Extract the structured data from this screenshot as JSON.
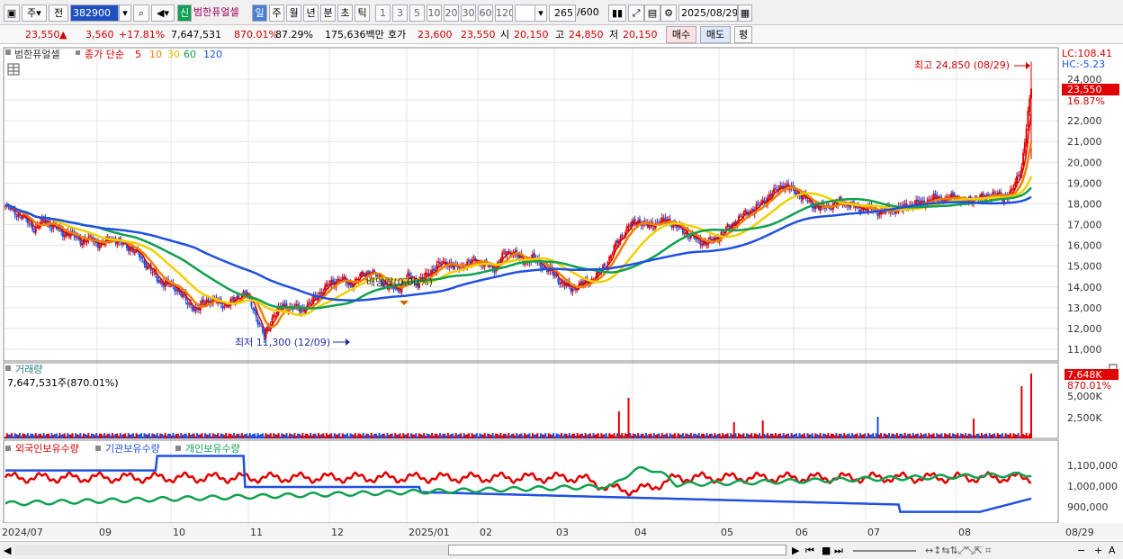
{
  "toolbar": {
    "period": "주",
    "mode": "전",
    "code": "382900",
    "new_badge": "신",
    "stock_name": "범한퓨얼셀",
    "tf": [
      "일",
      "주",
      "월",
      "년",
      "분",
      "초",
      "틱"
    ],
    "tf_active": "일",
    "mins": [
      "1",
      "3",
      "5",
      "10",
      "20",
      "30",
      "60",
      "120"
    ],
    "count": "265",
    "count_total": "/600",
    "date": "2025/08/29"
  },
  "quote": {
    "price": "23,550",
    "up_arrow": "▲",
    "change": "3,560",
    "pct": "+17.81%",
    "volume": "7,647,531",
    "vol_ratio": "870.01%",
    "turnover": "87.29%",
    "amount": "175,636백만",
    "ask_label": "호가",
    "ask": "23,600",
    "bid": "23,550",
    "open_label": "시",
    "open": "20,150",
    "high_label": "고",
    "high": "24,850",
    "low_label": "저",
    "low": "20,150",
    "buy": "매수",
    "sell": "매도",
    "avg": "평"
  },
  "chart": {
    "legend_name": "범한퓨얼셀",
    "legend_ma_label": "종가 단순",
    "ma_periods": [
      "5",
      "10",
      "30",
      "60",
      "120"
    ],
    "ma_colors": [
      "#e00000",
      "#f08000",
      "#f0d000",
      "#10a050",
      "#2050e0"
    ],
    "lc": "LC:108.41",
    "hc": "HC:-5.23",
    "price_tag": "23,550",
    "pct_tag": "16.87%",
    "high_note": "최고 24,850 (08/29)",
    "low_note": "최저 11,300 (12/09)",
    "dividend_note": "배당락(0.00%)",
    "y_labels": [
      "24,000",
      "23,000",
      "22,000",
      "21,000",
      "20,000",
      "19,000",
      "18,000",
      "17,000",
      "16,000",
      "15,000",
      "14,000",
      "13,000",
      "12,000",
      "11,000"
    ],
    "y_values": [
      24000,
      23000,
      22000,
      21000,
      20000,
      19000,
      18000,
      17000,
      16000,
      15000,
      14000,
      13000,
      12000,
      11000
    ],
    "vol_title": "거래량",
    "vol_info": "7,647,531주(870.01%)",
    "vol_tag": "7,648K",
    "vol_pct": "870.01%",
    "vol_labels": [
      "5,000K",
      "2,500K"
    ],
    "own_titles": [
      "외국인보유수량",
      "기관보유수량",
      "개인보유수량"
    ],
    "own_colors": [
      "#e00000",
      "#2050e0",
      "#10a050"
    ],
    "own_labels": [
      "1,100,000",
      "1,000,000",
      "900,000"
    ],
    "x_labels": [
      "2024/07",
      "09",
      "10",
      "11",
      "12",
      "2025/01",
      "02",
      "03",
      "04",
      "05",
      "06",
      "07",
      "08",
      "08/29"
    ]
  },
  "chart_data": {
    "type": "candlestick",
    "title": "",
    "x": [
      "2024/07",
      "09",
      "10",
      "11",
      "12",
      "2025/01",
      "02",
      "03",
      "04",
      "05",
      "06",
      "07",
      "08",
      "08/29"
    ],
    "price_anchors": [
      [
        0,
        17900
      ],
      [
        6,
        17600
      ],
      [
        12,
        17300
      ],
      [
        18,
        16800
      ],
      [
        24,
        17200
      ],
      [
        30,
        16900
      ],
      [
        36,
        16600
      ],
      [
        42,
        16500
      ],
      [
        48,
        16200
      ],
      [
        54,
        16300
      ],
      [
        60,
        16000
      ],
      [
        66,
        16400
      ],
      [
        72,
        16100
      ],
      [
        78,
        15900
      ],
      [
        84,
        15500
      ],
      [
        90,
        14900
      ],
      [
        96,
        14300
      ],
      [
        102,
        14100
      ],
      [
        108,
        13900
      ],
      [
        114,
        13200
      ],
      [
        120,
        12900
      ],
      [
        126,
        13400
      ],
      [
        132,
        13300
      ],
      [
        138,
        13100
      ],
      [
        144,
        13400
      ],
      [
        150,
        13800
      ],
      [
        156,
        12800
      ],
      [
        162,
        11600
      ],
      [
        168,
        12700
      ],
      [
        174,
        13100
      ],
      [
        180,
        13000
      ],
      [
        186,
        12900
      ],
      [
        192,
        13300
      ],
      [
        198,
        13800
      ],
      [
        204,
        14200
      ],
      [
        210,
        14400
      ],
      [
        216,
        14100
      ],
      [
        222,
        14500
      ],
      [
        228,
        14800
      ],
      [
        234,
        14400
      ],
      [
        240,
        14000
      ],
      [
        246,
        13900
      ],
      [
        252,
        14500
      ],
      [
        258,
        14200
      ],
      [
        264,
        14600
      ],
      [
        270,
        15000
      ],
      [
        276,
        15200
      ],
      [
        282,
        14900
      ],
      [
        288,
        15100
      ],
      [
        294,
        15300
      ],
      [
        300,
        15100
      ],
      [
        306,
        14900
      ],
      [
        312,
        15600
      ],
      [
        318,
        15700
      ],
      [
        324,
        15200
      ],
      [
        330,
        15400
      ],
      [
        336,
        15000
      ],
      [
        342,
        14700
      ],
      [
        348,
        14200
      ],
      [
        354,
        13900
      ],
      [
        360,
        14100
      ],
      [
        366,
        14300
      ],
      [
        372,
        14700
      ],
      [
        378,
        15400
      ],
      [
        384,
        16300
      ],
      [
        390,
        16900
      ],
      [
        396,
        17200
      ],
      [
        402,
        16900
      ],
      [
        408,
        17100
      ],
      [
        414,
        17200
      ],
      [
        420,
        16900
      ],
      [
        426,
        16600
      ],
      [
        432,
        16300
      ],
      [
        438,
        16100
      ],
      [
        444,
        16300
      ],
      [
        450,
        16700
      ],
      [
        456,
        17100
      ],
      [
        462,
        17500
      ],
      [
        468,
        17700
      ],
      [
        474,
        18100
      ],
      [
        480,
        18500
      ],
      [
        486,
        18900
      ],
      [
        492,
        18700
      ],
      [
        498,
        18400
      ],
      [
        504,
        18000
      ],
      [
        510,
        17800
      ],
      [
        516,
        17900
      ],
      [
        522,
        18100
      ],
      [
        528,
        18000
      ],
      [
        534,
        17800
      ],
      [
        540,
        17800
      ],
      [
        546,
        17600
      ],
      [
        552,
        17700
      ],
      [
        558,
        17700
      ],
      [
        564,
        17900
      ],
      [
        570,
        18000
      ],
      [
        576,
        18100
      ],
      [
        582,
        18300
      ],
      [
        588,
        18200
      ],
      [
        594,
        18400
      ],
      [
        600,
        18100
      ],
      [
        606,
        18300
      ],
      [
        612,
        18300
      ],
      [
        618,
        18500
      ],
      [
        624,
        18300
      ],
      [
        630,
        18600
      ],
      [
        636,
        19800
      ],
      [
        642,
        23550
      ]
    ],
    "high": 24850,
    "low": 11300
  }
}
